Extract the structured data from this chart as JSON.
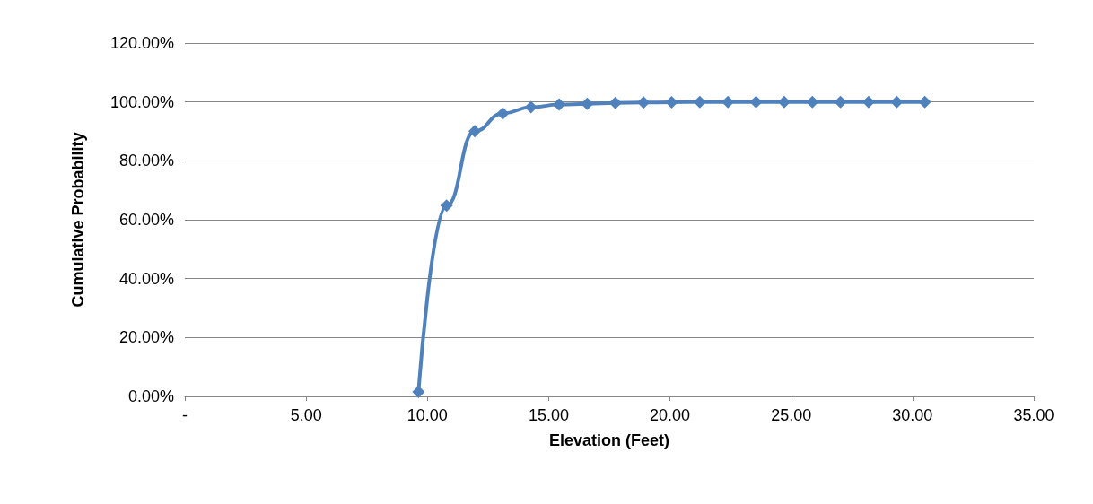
{
  "chart_data": {
    "type": "line",
    "xlabel": "Elevation (Feet)",
    "ylabel": "Cumulative Probability",
    "x": [
      9.63,
      10.79,
      11.95,
      13.11,
      14.27,
      15.43,
      16.59,
      17.75,
      18.91,
      20.07,
      21.23,
      22.39,
      23.55,
      24.71,
      25.87,
      27.03,
      28.19,
      29.35,
      30.51
    ],
    "series": [
      {
        "color": "#4f81bd",
        "values": [
          1.5,
          64.8,
          90.1,
          96.1,
          98.2,
          99.1,
          99.4,
          99.7,
          99.8,
          99.9,
          100,
          100,
          100,
          100,
          100,
          100,
          100,
          100,
          100
        ]
      }
    ],
    "xlim": [
      0,
      35
    ],
    "xticks": [
      {
        "value": 0,
        "label": "-"
      },
      {
        "value": 5,
        "label": "5.00"
      },
      {
        "value": 10,
        "label": "10.00"
      },
      {
        "value": 15,
        "label": "15.00"
      },
      {
        "value": 20,
        "label": "20.00"
      },
      {
        "value": 25,
        "label": "25.00"
      },
      {
        "value": 30,
        "label": "30.00"
      },
      {
        "value": 35,
        "label": "35.00"
      }
    ],
    "ylim": [
      0,
      120
    ],
    "yticks": [
      {
        "value": 0,
        "label": "0.00%"
      },
      {
        "value": 20,
        "label": "20.00%"
      },
      {
        "value": 40,
        "label": "40.00%"
      },
      {
        "value": 60,
        "label": "60.00%"
      },
      {
        "value": 80,
        "label": "80.00%"
      },
      {
        "value": 100,
        "label": "100.00%"
      },
      {
        "value": 120,
        "label": "120.00%"
      }
    ],
    "grid": "y",
    "marker": "diamond",
    "line_style": "solid"
  }
}
